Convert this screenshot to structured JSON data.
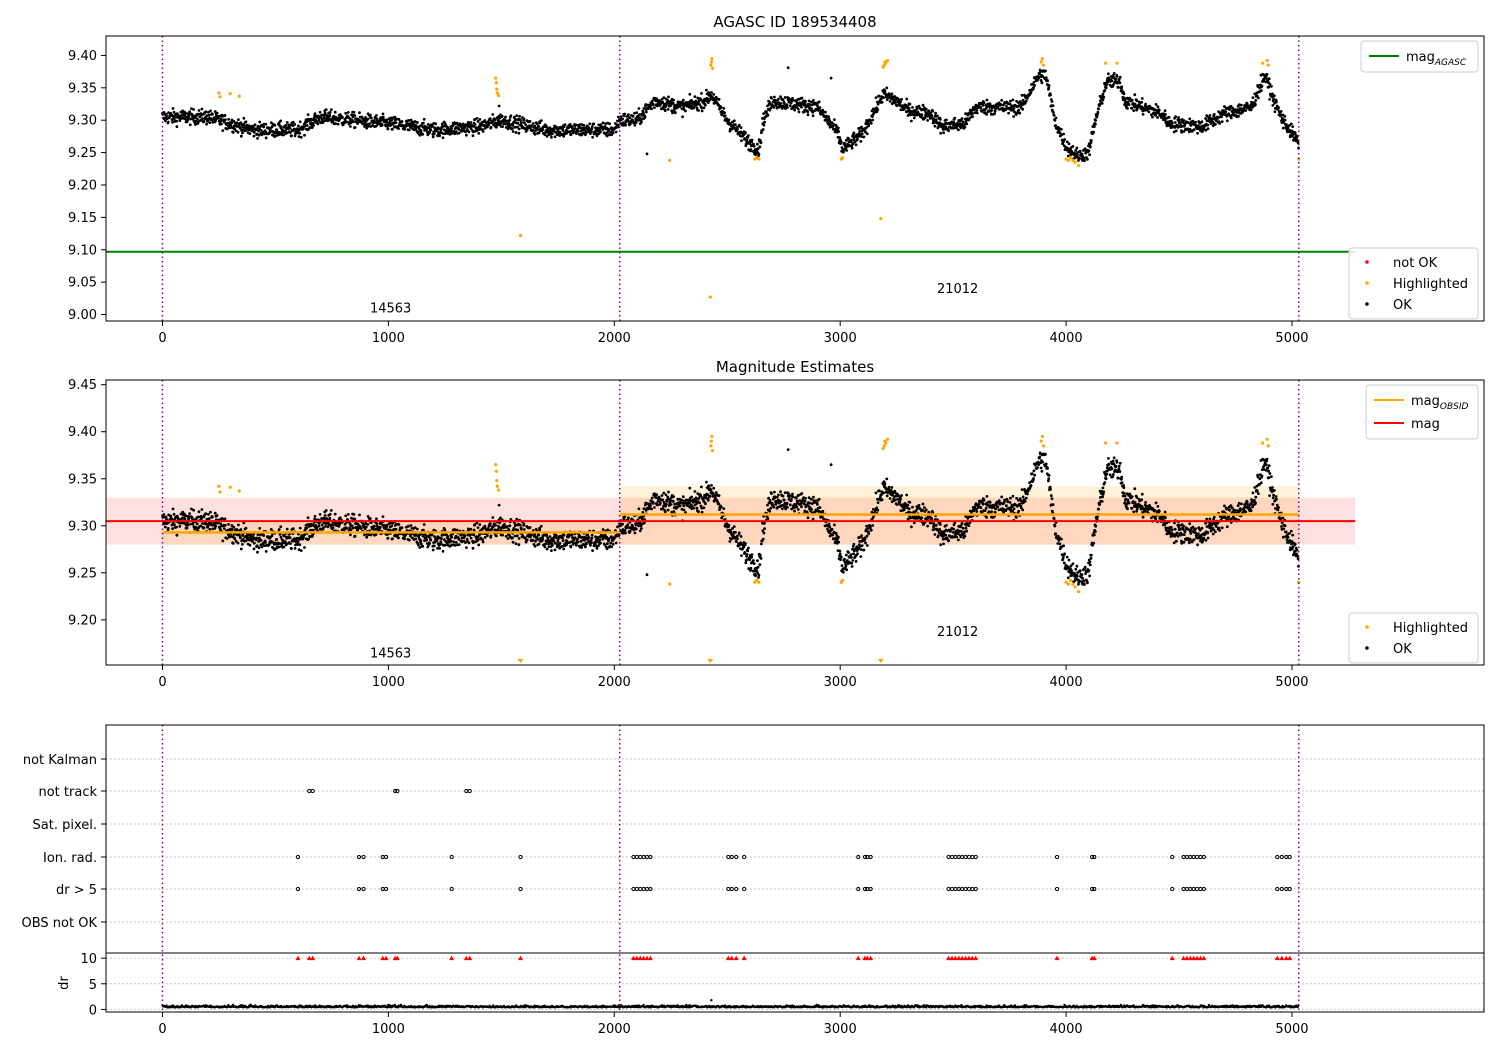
{
  "chart_data": [
    {
      "type": "scatter",
      "title": "AGASC ID 189534408",
      "xlim": [
        -250,
        5850
      ],
      "ylim": [
        8.99,
        9.43
      ],
      "x_ticks": [
        0,
        1000,
        2000,
        3000,
        4000,
        5000
      ],
      "y_ticks": [
        9.0,
        9.05,
        9.1,
        9.15,
        9.2,
        9.25,
        9.3,
        9.35,
        9.4
      ],
      "y_tick_labels": [
        "9.00",
        "9.05",
        "9.10",
        "9.15",
        "9.20",
        "9.25",
        "9.30",
        "9.35",
        "9.40"
      ],
      "obsid_boundaries": [
        0,
        2024,
        5030
      ],
      "obsid_labels": [
        {
          "text": "14563",
          "x": 1010,
          "y": 9.0
        },
        {
          "text": "21012",
          "x": 3520,
          "y": 9.03
        }
      ],
      "lines": [
        {
          "legend_main": "mag",
          "legend_sub": "AGASC",
          "color": "#008000",
          "x": [
            -250,
            5280
          ],
          "y": [
            9.097,
            9.097
          ]
        }
      ],
      "legend_top": [
        {
          "main": "mag",
          "sub": "AGASC",
          "color": "#008000"
        }
      ],
      "legend_bottom": [
        {
          "label": "not OK",
          "color": "#ff0000"
        },
        {
          "label": "Highlighted",
          "color": "#ffa500"
        },
        {
          "label": "OK",
          "color": "#000000"
        }
      ],
      "series": [
        {
          "name": "OK",
          "color": "#000000",
          "description": "dense cloud of ~5000 points following the magnitude trend"
        },
        {
          "name": "Highlighted",
          "color": "#ffa500",
          "points": [
            [
              250,
              9.342
            ],
            [
              255,
              9.336
            ],
            [
              300,
              9.341
            ],
            [
              340,
              9.337
            ],
            [
              1475,
              9.365
            ],
            [
              1478,
              9.358
            ],
            [
              1480,
              9.348
            ],
            [
              1482,
              9.342
            ],
            [
              1488,
              9.338
            ],
            [
              1585,
              9.122
            ],
            [
              2245,
              9.238
            ],
            [
              2425,
              9.027
            ],
            [
              2428,
              9.385
            ],
            [
              2430,
              9.39
            ],
            [
              2432,
              9.395
            ],
            [
              2435,
              9.38
            ],
            [
              2622,
              9.24
            ],
            [
              2630,
              9.242
            ],
            [
              2640,
              9.24
            ],
            [
              3005,
              9.24
            ],
            [
              3010,
              9.242
            ],
            [
              3180,
              9.148
            ],
            [
              3190,
              9.382
            ],
            [
              3195,
              9.385
            ],
            [
              3198,
              9.39
            ],
            [
              3202,
              9.388
            ],
            [
              3210,
              9.392
            ],
            [
              3890,
              9.39
            ],
            [
              3895,
              9.395
            ],
            [
              3900,
              9.385
            ],
            [
              4000,
              9.24
            ],
            [
              4010,
              9.238
            ],
            [
              4020,
              9.242
            ],
            [
              4030,
              9.238
            ],
            [
              4040,
              9.235
            ],
            [
              4055,
              9.23
            ],
            [
              4175,
              9.388
            ],
            [
              4225,
              9.388
            ],
            [
              4870,
              9.388
            ],
            [
              4890,
              9.392
            ],
            [
              4895,
              9.385
            ],
            [
              5030,
              9.24
            ]
          ]
        }
      ]
    },
    {
      "type": "scatter",
      "title": "Magnitude Estimates",
      "xlim": [
        -250,
        5850
      ],
      "ylim": [
        9.152,
        9.455
      ],
      "x_ticks": [
        0,
        1000,
        2000,
        3000,
        4000,
        5000
      ],
      "y_ticks": [
        9.2,
        9.25,
        9.3,
        9.35,
        9.4,
        9.45
      ],
      "y_tick_labels": [
        "9.20",
        "9.25",
        "9.30",
        "9.35",
        "9.40",
        "9.45"
      ],
      "obsid_boundaries": [
        0,
        2024,
        5030
      ],
      "obsid_labels": [
        {
          "text": "14563",
          "x": 1010,
          "y": 9.16
        },
        {
          "text": "21012",
          "x": 3520,
          "y": 9.183
        }
      ],
      "mag_line": {
        "legend": "mag",
        "color": "#ff0000",
        "y": 9.305,
        "band": [
          9.28,
          9.33
        ],
        "x": [
          -250,
          5280
        ]
      },
      "obsid_segments": [
        {
          "x": [
            0,
            2024
          ],
          "y": 9.293,
          "band": [
            9.28,
            9.306
          ]
        },
        {
          "x": [
            2024,
            5030
          ],
          "y": 9.312,
          "band": [
            9.28,
            9.342
          ]
        }
      ],
      "legend_top": [
        {
          "main": "mag",
          "sub": "OBSID",
          "color": "#ffa500"
        },
        {
          "main": "mag",
          "sub": "",
          "color": "#ff0000"
        }
      ],
      "legend_bottom": [
        {
          "label": "Highlighted",
          "color": "#ffa500"
        },
        {
          "label": "OK",
          "color": "#000000"
        }
      ],
      "out_of_range_markers": [
        1585,
        2425,
        3180
      ],
      "series": [
        {
          "name": "OK",
          "color": "#000000",
          "description": "same magnitude cloud as top panel"
        },
        {
          "name": "Highlighted",
          "color": "#ffa500",
          "points": [
            [
              250,
              9.342
            ],
            [
              255,
              9.336
            ],
            [
              300,
              9.341
            ],
            [
              340,
              9.337
            ],
            [
              1475,
              9.365
            ],
            [
              1478,
              9.358
            ],
            [
              1480,
              9.348
            ],
            [
              1482,
              9.342
            ],
            [
              1488,
              9.338
            ],
            [
              2245,
              9.238
            ],
            [
              2428,
              9.385
            ],
            [
              2430,
              9.39
            ],
            [
              2432,
              9.395
            ],
            [
              2435,
              9.38
            ],
            [
              2622,
              9.24
            ],
            [
              2630,
              9.242
            ],
            [
              2640,
              9.24
            ],
            [
              3005,
              9.24
            ],
            [
              3010,
              9.242
            ],
            [
              3190,
              9.382
            ],
            [
              3195,
              9.385
            ],
            [
              3198,
              9.39
            ],
            [
              3202,
              9.388
            ],
            [
              3210,
              9.392
            ],
            [
              3890,
              9.39
            ],
            [
              3895,
              9.395
            ],
            [
              3900,
              9.385
            ],
            [
              4000,
              9.24
            ],
            [
              4010,
              9.238
            ],
            [
              4020,
              9.242
            ],
            [
              4030,
              9.238
            ],
            [
              4040,
              9.235
            ],
            [
              4055,
              9.23
            ],
            [
              4175,
              9.388
            ],
            [
              4225,
              9.388
            ],
            [
              4870,
              9.388
            ],
            [
              4890,
              9.392
            ],
            [
              4895,
              9.385
            ],
            [
              5030,
              9.24
            ]
          ]
        }
      ]
    },
    {
      "type": "scatter",
      "title": "",
      "xlim": [
        -250,
        5850
      ],
      "x_ticks": [
        0,
        1000,
        2000,
        3000,
        4000,
        5000
      ],
      "obsid_boundaries": [
        0,
        2024,
        5030
      ],
      "flag_rows": [
        "not Kalman",
        "not track",
        "Sat. pixel.",
        "Ion. rad.",
        "dr > 5",
        "OBS not OK"
      ],
      "flag_events": {
        "not track": [
          650,
          665,
          1030,
          1040,
          1345,
          1360
        ],
        "Ion. rad.": [
          600,
          870,
          890,
          975,
          990,
          1280,
          1585,
          2085,
          2100,
          2115,
          2130,
          2145,
          2160,
          2505,
          2520,
          2540,
          2575,
          3080,
          3110,
          3120,
          3135,
          3480,
          3495,
          3510,
          3525,
          3540,
          3555,
          3570,
          3585,
          3600,
          3960,
          4115,
          4125,
          4470,
          4520,
          4535,
          4550,
          4565,
          4580,
          4595,
          4610,
          4935,
          4955,
          4975,
          4990
        ],
        "dr > 5": [
          600,
          870,
          890,
          975,
          990,
          1280,
          1585,
          2085,
          2100,
          2115,
          2130,
          2145,
          2160,
          2505,
          2520,
          2540,
          2575,
          3080,
          3110,
          3120,
          3135,
          3480,
          3495,
          3510,
          3525,
          3540,
          3555,
          3570,
          3585,
          3600,
          3960,
          4115,
          4125,
          4470,
          4520,
          4535,
          4550,
          4565,
          4580,
          4595,
          4610,
          4935,
          4955,
          4975,
          4990
        ]
      },
      "dr_panel": {
        "ylabel": "dr",
        "ylim": [
          -0.5,
          11
        ],
        "y_ticks": [
          0,
          5,
          10
        ],
        "y_tick_labels": [
          "0",
          "5",
          "10"
        ],
        "baseline": 0.4,
        "clipped_markers_color": "#ff0000",
        "clipped_markers_x": [
          600,
          650,
          665,
          870,
          890,
          975,
          990,
          1030,
          1040,
          1280,
          1345,
          1360,
          1585,
          2085,
          2100,
          2115,
          2130,
          2145,
          2160,
          2505,
          2520,
          2540,
          2575,
          3080,
          3110,
          3120,
          3135,
          3480,
          3495,
          3510,
          3525,
          3540,
          3555,
          3570,
          3585,
          3600,
          3960,
          4115,
          4125,
          4470,
          4520,
          4535,
          4550,
          4565,
          4580,
          4595,
          4610,
          4935,
          4955,
          4975,
          4990
        ]
      }
    }
  ]
}
